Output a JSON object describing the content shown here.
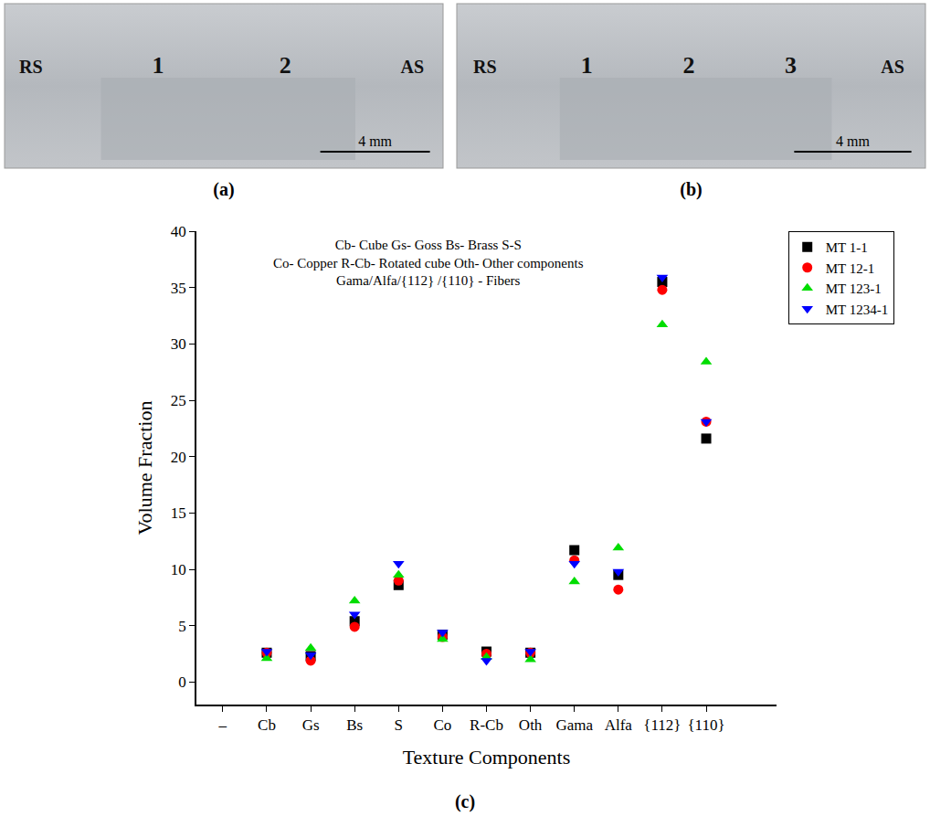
{
  "figure": {
    "panels": [
      {
        "label": "(a)",
        "regions": [
          "RS",
          "1",
          "2",
          "AS"
        ],
        "scale": "4 mm"
      },
      {
        "label": "(b)",
        "regions": [
          "RS",
          "1",
          "2",
          "3",
          "AS"
        ],
        "scale": "4 mm"
      }
    ],
    "chart_label": "(c)"
  },
  "chart_data": {
    "type": "scatter",
    "xlabel": "Texture Components",
    "ylabel": "Volume Fraction",
    "annotations": [
      "Cb- Cube Gs- Goss Bs- Brass S-S",
      "Co- Copper R-Cb- Rotated cube Oth- Other components",
      "Gama/Alfa/{112} /{110} - Fibers"
    ],
    "categories": [
      "–",
      "Cb",
      "Gs",
      "Bs",
      "S",
      "Co",
      "R-Cb",
      "Oth",
      "Gama",
      "Alfa",
      "{112}",
      "{110}",
      null
    ],
    "series": [
      {
        "name": "MT 1-1",
        "color": "#000000",
        "marker": "square",
        "values": [
          null,
          2.6,
          2.3,
          5.4,
          8.6,
          4.2,
          2.7,
          2.6,
          11.7,
          9.5,
          35.5,
          21.6,
          null
        ]
      },
      {
        "name": "MT 12-1",
        "color": "#ff0000",
        "marker": "circle",
        "values": [
          null,
          2.6,
          1.9,
          4.9,
          9.0,
          4.0,
          2.5,
          2.6,
          10.8,
          8.2,
          34.8,
          23.1,
          null
        ]
      },
      {
        "name": "MT 123-1",
        "color": "#00dd00",
        "marker": "triangle-up",
        "values": [
          null,
          2.1,
          3.0,
          7.2,
          9.5,
          3.8,
          2.2,
          2.0,
          8.9,
          11.9,
          31.7,
          28.4,
          null
        ]
      },
      {
        "name": "MT 1234-1",
        "color": "#0000ff",
        "marker": "triangle-down",
        "values": [
          null,
          2.7,
          2.4,
          6.0,
          10.5,
          4.4,
          1.9,
          2.7,
          10.5,
          9.8,
          35.9,
          23.1,
          null
        ]
      }
    ],
    "ylim": [
      -2,
      40
    ],
    "yticks": [
      0,
      5,
      10,
      15,
      20,
      25,
      30,
      35,
      40
    ],
    "legend": "right",
    "grid": false
  }
}
